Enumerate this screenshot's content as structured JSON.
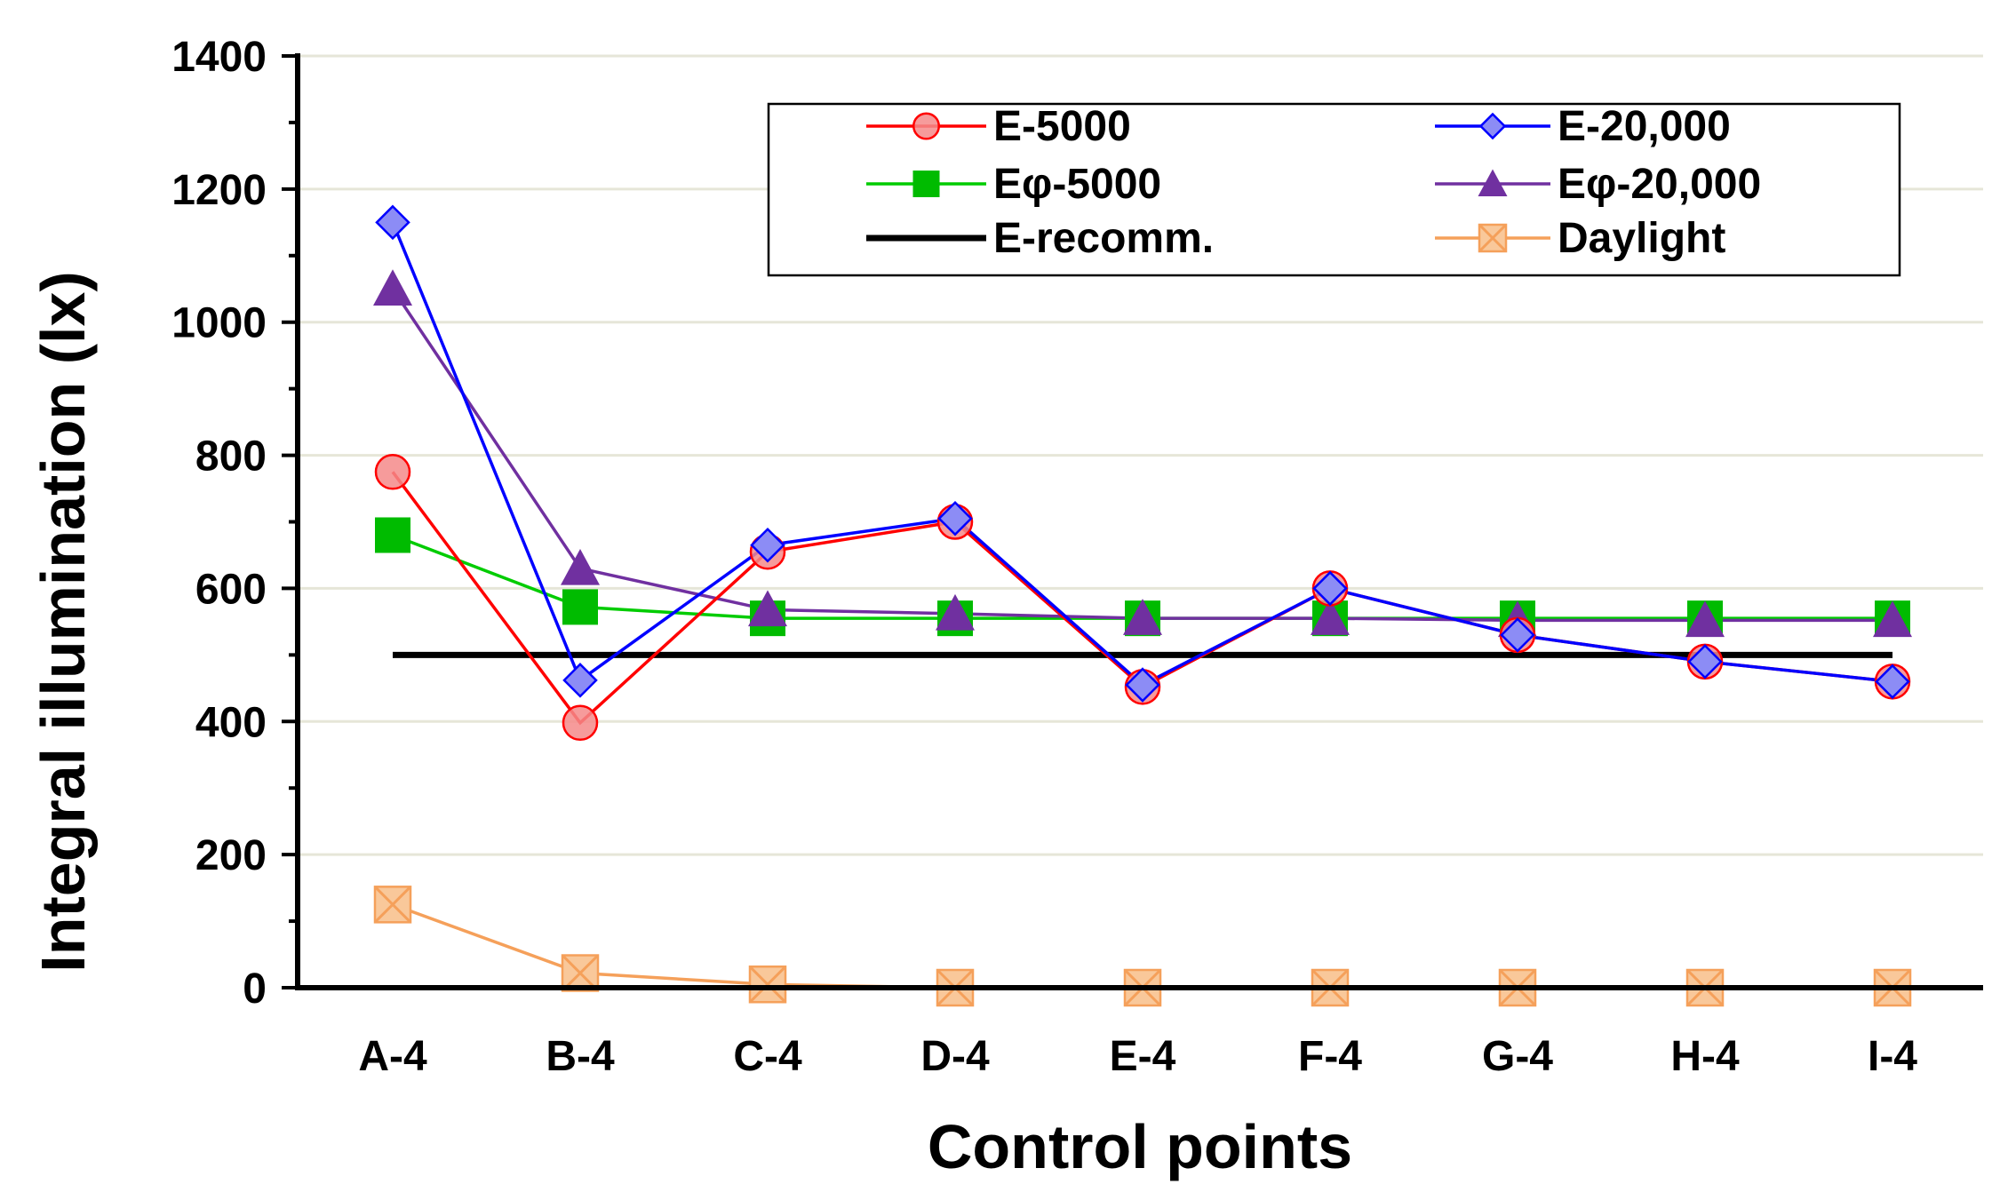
{
  "chart_data": {
    "type": "line",
    "title": "",
    "xlabel": "Control points",
    "ylabel": "Integral illumination (lx)",
    "ylim": [
      0,
      1400
    ],
    "yticks": [
      0,
      200,
      400,
      600,
      800,
      1000,
      1200,
      1400
    ],
    "ytick_labels": [
      "0",
      "200",
      "400",
      "600",
      "800",
      "1000",
      "1200",
      "1400"
    ],
    "grid": true,
    "legend_position": "top-right",
    "categories": [
      "A-4",
      "B-4",
      "C-4",
      "D-4",
      "E-4",
      "F-4",
      "G-4",
      "H-4",
      "I-4"
    ],
    "series": [
      {
        "name": "E-5000",
        "color": "#ff0000",
        "fill": "#f48a8a",
        "marker": "circle",
        "values": [
          775,
          398,
          655,
          700,
          452,
          600,
          530,
          490,
          460
        ]
      },
      {
        "name": "E-20,000",
        "color": "#0000ff",
        "fill": "#8c8cf5",
        "marker": "diamond",
        "values": [
          1150,
          462,
          665,
          705,
          455,
          600,
          530,
          490,
          460
        ]
      },
      {
        "name": "Eφ-5000",
        "color": "#00cc00",
        "fill": "#00bb00",
        "marker": "square",
        "values": [
          680,
          572,
          555,
          555,
          555,
          555,
          555,
          555,
          555
        ]
      },
      {
        "name": "Eφ-20,000",
        "color": "#7030a0",
        "fill": "#7030a0",
        "marker": "triangle",
        "values": [
          1050,
          630,
          568,
          562,
          555,
          555,
          552,
          552,
          552
        ]
      },
      {
        "name": "E-recomm.",
        "color": "#000000",
        "fill": "none",
        "marker": "none",
        "values": [
          500,
          500,
          500,
          500,
          500,
          500,
          500,
          500,
          500
        ]
      },
      {
        "name": "Daylight",
        "color": "#f5a05a",
        "fill": "#f9c89a",
        "marker": "x-square",
        "values": [
          125,
          22,
          5,
          0,
          0,
          0,
          0,
          0,
          0
        ]
      }
    ]
  }
}
